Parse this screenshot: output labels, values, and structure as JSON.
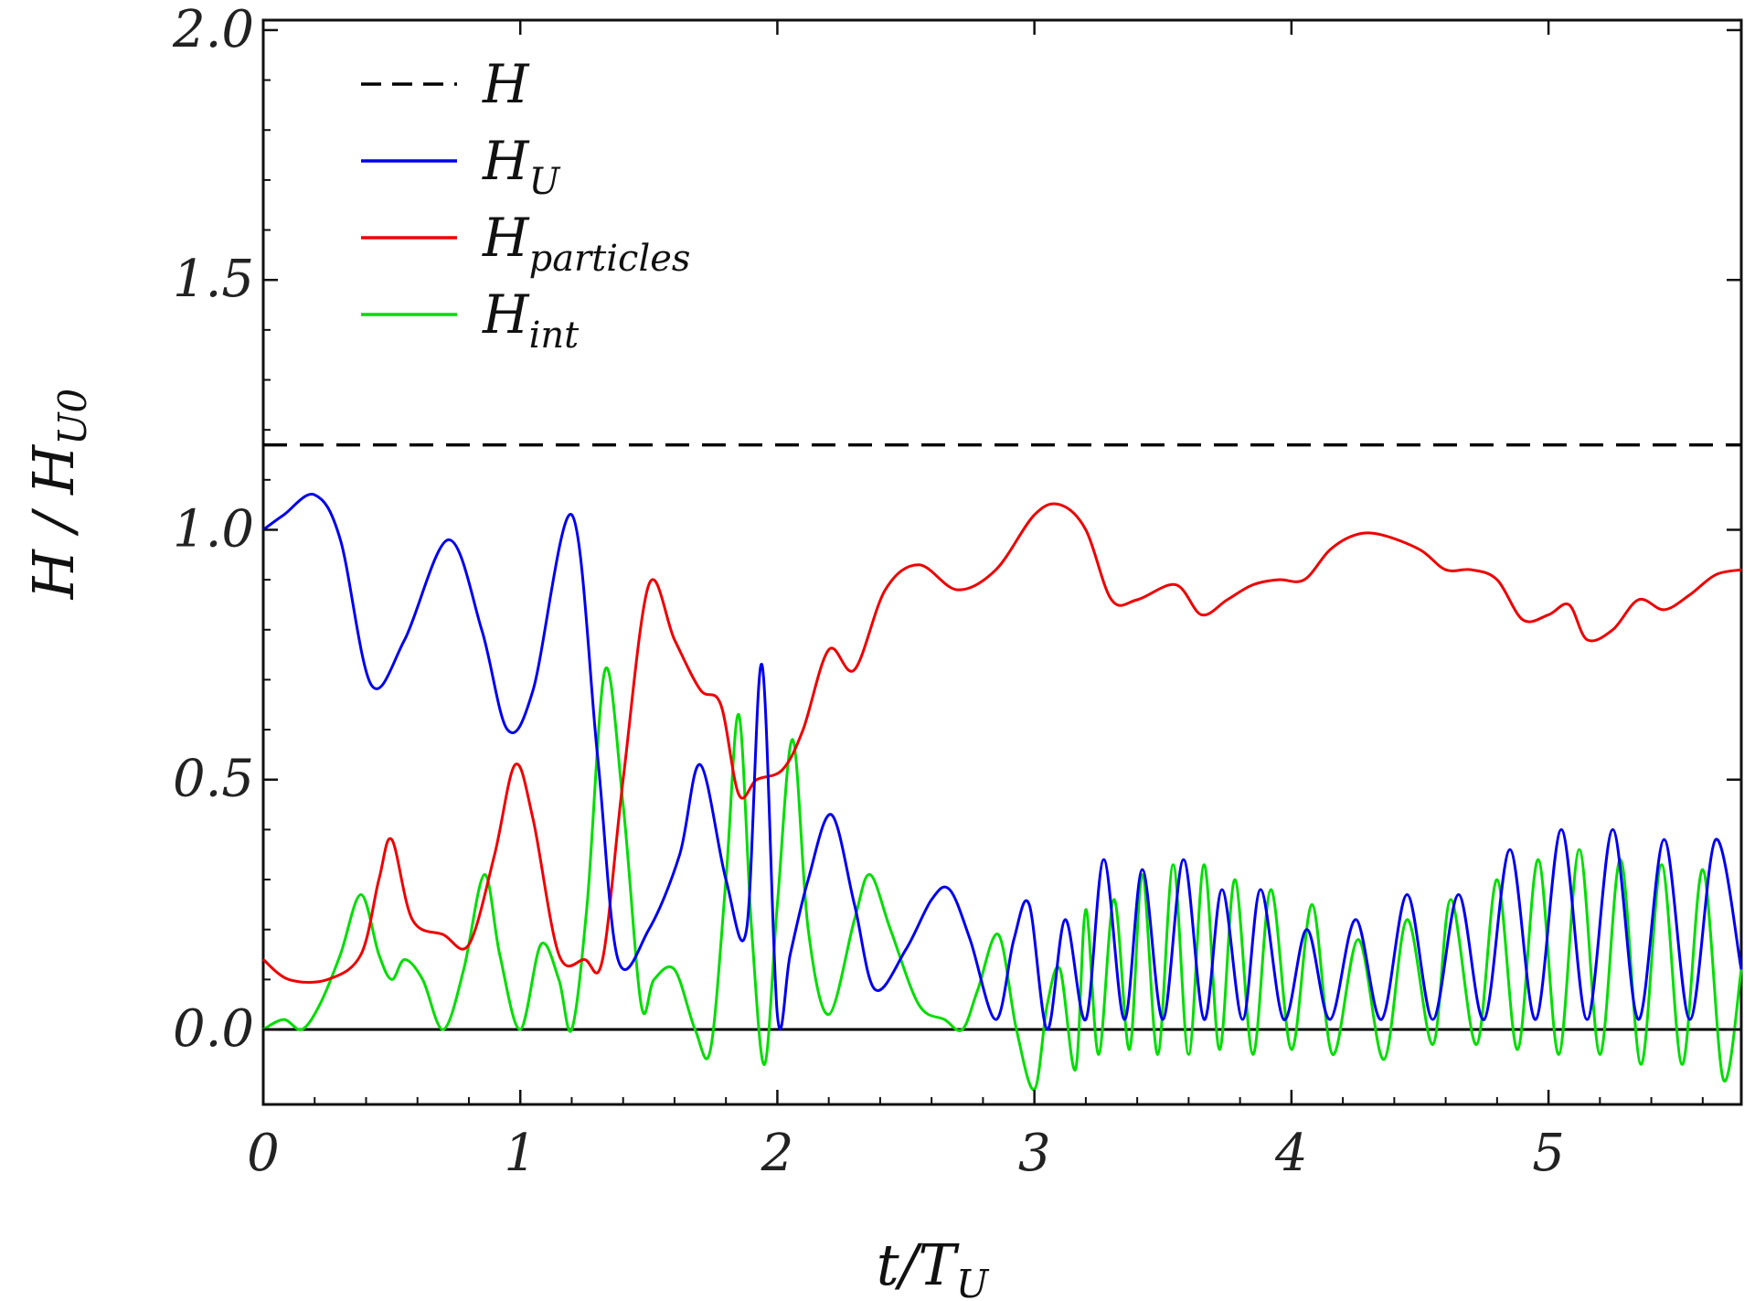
{
  "chart_data": {
    "type": "line",
    "xlabel": {
      "base": "t/T",
      "sub": "U"
    },
    "ylabel": {
      "base": "H / H",
      "sub": "U0"
    },
    "xlim": [
      0,
      5.75
    ],
    "ylim": [
      -0.15,
      2.02
    ],
    "xticks": [
      0,
      1,
      2,
      3,
      4,
      5
    ],
    "yticks": [
      0.0,
      0.5,
      1.0,
      1.5,
      2.0
    ],
    "x_tick_labels": [
      "0",
      "1",
      "2",
      "3",
      "4",
      "5"
    ],
    "y_tick_labels": [
      "0.0",
      "0.5",
      "1.0",
      "1.5",
      "2.0"
    ],
    "grid": false,
    "legend_position": "top-left",
    "zero_line": true,
    "series": [
      {
        "name": "H",
        "name_base": "H",
        "name_sub": "",
        "color": "#000000",
        "dashed": true,
        "x": [
          0,
          5.75
        ],
        "y": [
          1.17,
          1.17
        ]
      },
      {
        "name": "H_U",
        "name_base": "H",
        "name_sub": "U",
        "color": "#0000ee",
        "dashed": false,
        "x": [
          0,
          0.08,
          0.2,
          0.3,
          0.42,
          0.55,
          0.72,
          0.85,
          0.95,
          1.05,
          1.2,
          1.3,
          1.38,
          1.5,
          1.62,
          1.7,
          1.8,
          1.88,
          1.94,
          2.0,
          2.05,
          2.12,
          2.21,
          2.3,
          2.38,
          2.5,
          2.6,
          2.67,
          2.75,
          2.85,
          2.92,
          2.98,
          3.05,
          3.12,
          3.2,
          3.27,
          3.35,
          3.42,
          3.5,
          3.58,
          3.66,
          3.73,
          3.81,
          3.88,
          3.97,
          4.06,
          4.15,
          4.25,
          4.35,
          4.45,
          4.55,
          4.65,
          4.75,
          4.85,
          4.95,
          5.05,
          5.15,
          5.25,
          5.35,
          5.45,
          5.55,
          5.65,
          5.75
        ],
        "y": [
          1.0,
          1.03,
          1.07,
          0.98,
          0.69,
          0.78,
          0.98,
          0.8,
          0.6,
          0.68,
          1.03,
          0.55,
          0.14,
          0.2,
          0.35,
          0.53,
          0.3,
          0.2,
          0.73,
          0.03,
          0.15,
          0.3,
          0.43,
          0.25,
          0.08,
          0.16,
          0.26,
          0.28,
          0.18,
          0.02,
          0.18,
          0.25,
          0.0,
          0.22,
          0.02,
          0.34,
          0.02,
          0.32,
          0.02,
          0.34,
          0.02,
          0.28,
          0.02,
          0.28,
          0.02,
          0.2,
          0.02,
          0.22,
          0.02,
          0.27,
          0.02,
          0.27,
          0.02,
          0.36,
          0.02,
          0.4,
          0.02,
          0.4,
          0.02,
          0.38,
          0.02,
          0.38,
          0.12
        ]
      },
      {
        "name": "H_particles",
        "name_base": "H",
        "name_sub": "particles",
        "color": "#ee0000",
        "dashed": false,
        "x": [
          0,
          0.1,
          0.25,
          0.38,
          0.45,
          0.5,
          0.58,
          0.7,
          0.8,
          0.9,
          0.98,
          1.05,
          1.15,
          1.25,
          1.32,
          1.4,
          1.5,
          1.6,
          1.7,
          1.78,
          1.85,
          1.92,
          2.02,
          2.1,
          2.2,
          2.3,
          2.42,
          2.55,
          2.7,
          2.85,
          3.0,
          3.1,
          3.2,
          3.3,
          3.4,
          3.55,
          3.65,
          3.75,
          3.85,
          3.95,
          4.05,
          4.15,
          4.25,
          4.35,
          4.5,
          4.6,
          4.7,
          4.8,
          4.9,
          5.0,
          5.08,
          5.15,
          5.25,
          5.35,
          5.45,
          5.55,
          5.65,
          5.75
        ],
        "y": [
          0.14,
          0.1,
          0.1,
          0.15,
          0.3,
          0.38,
          0.22,
          0.19,
          0.17,
          0.35,
          0.53,
          0.42,
          0.15,
          0.14,
          0.14,
          0.5,
          0.89,
          0.78,
          0.68,
          0.65,
          0.47,
          0.5,
          0.52,
          0.6,
          0.76,
          0.72,
          0.88,
          0.93,
          0.88,
          0.92,
          1.03,
          1.05,
          1.0,
          0.86,
          0.86,
          0.89,
          0.83,
          0.86,
          0.89,
          0.9,
          0.9,
          0.96,
          0.99,
          0.99,
          0.96,
          0.92,
          0.92,
          0.9,
          0.82,
          0.83,
          0.85,
          0.78,
          0.8,
          0.86,
          0.84,
          0.87,
          0.91,
          0.92
        ]
      },
      {
        "name": "H_int",
        "name_base": "H",
        "name_sub": "int",
        "color": "#00dd00",
        "dashed": false,
        "x": [
          0,
          0.08,
          0.15,
          0.22,
          0.3,
          0.38,
          0.45,
          0.5,
          0.55,
          0.62,
          0.7,
          0.78,
          0.86,
          0.92,
          1.0,
          1.08,
          1.15,
          1.2,
          1.26,
          1.33,
          1.4,
          1.47,
          1.52,
          1.6,
          1.68,
          1.74,
          1.8,
          1.85,
          1.9,
          1.95,
          2.0,
          2.06,
          2.12,
          2.2,
          2.3,
          2.36,
          2.44,
          2.55,
          2.65,
          2.72,
          2.78,
          2.86,
          2.93,
          3.0,
          3.05,
          3.1,
          3.16,
          3.2,
          3.25,
          3.31,
          3.37,
          3.42,
          3.48,
          3.54,
          3.6,
          3.66,
          3.72,
          3.78,
          3.85,
          3.92,
          4.0,
          4.08,
          4.16,
          4.26,
          4.36,
          4.45,
          4.55,
          4.62,
          4.72,
          4.8,
          4.88,
          4.96,
          5.04,
          5.12,
          5.2,
          5.28,
          5.36,
          5.44,
          5.52,
          5.6,
          5.68,
          5.75
        ],
        "y": [
          0.0,
          0.02,
          0.0,
          0.05,
          0.15,
          0.27,
          0.15,
          0.1,
          0.14,
          0.1,
          0.0,
          0.12,
          0.31,
          0.15,
          0.0,
          0.17,
          0.1,
          0.0,
          0.25,
          0.72,
          0.45,
          0.05,
          0.1,
          0.12,
          0.0,
          -0.04,
          0.3,
          0.63,
          0.2,
          -0.07,
          0.25,
          0.58,
          0.2,
          0.03,
          0.22,
          0.31,
          0.2,
          0.05,
          0.02,
          0.0,
          0.08,
          0.19,
          0.0,
          -0.12,
          0.05,
          0.12,
          -0.08,
          0.24,
          -0.05,
          0.26,
          -0.04,
          0.31,
          -0.05,
          0.33,
          -0.05,
          0.33,
          -0.04,
          0.3,
          -0.05,
          0.28,
          -0.04,
          0.25,
          -0.05,
          0.18,
          -0.06,
          0.22,
          -0.03,
          0.26,
          -0.03,
          0.3,
          -0.04,
          0.34,
          -0.05,
          0.36,
          -0.05,
          0.34,
          -0.07,
          0.33,
          -0.07,
          0.32,
          -0.1,
          0.12
        ]
      }
    ]
  }
}
